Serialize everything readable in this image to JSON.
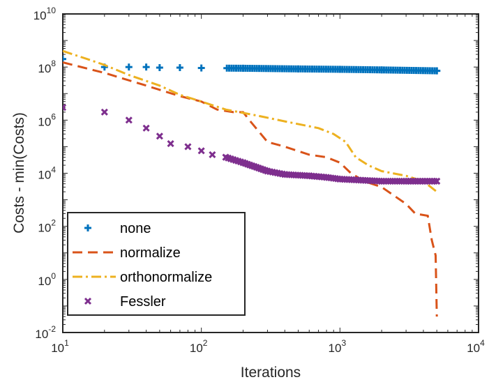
{
  "chart_data": {
    "type": "line",
    "title": "",
    "xlabel": "Iterations",
    "ylabel": "Costs - min(Costs)",
    "xscale": "log",
    "yscale": "log",
    "xlim": [
      10,
      10000
    ],
    "ylim": [
      0.01,
      10000000000
    ],
    "xticks": [
      {
        "value": 10,
        "base": "10",
        "exp": "1"
      },
      {
        "value": 100,
        "base": "10",
        "exp": "2"
      },
      {
        "value": 1000,
        "base": "10",
        "exp": "3"
      },
      {
        "value": 10000,
        "base": "10",
        "exp": "4"
      }
    ],
    "yticks": [
      {
        "value": 0.01,
        "base": "10",
        "exp": "-2"
      },
      {
        "value": 1,
        "base": "10",
        "exp": "0"
      },
      {
        "value": 100,
        "base": "10",
        "exp": "2"
      },
      {
        "value": 10000,
        "base": "10",
        "exp": "4"
      },
      {
        "value": 1000000,
        "base": "10",
        "exp": "6"
      },
      {
        "value": 100000000,
        "base": "10",
        "exp": "8"
      },
      {
        "value": 10000000000,
        "base": "10",
        "exp": "10"
      }
    ],
    "grid": false,
    "legend_position": "bottom-left",
    "series": [
      {
        "name": "none",
        "color": "#0072BD",
        "style": "markers",
        "marker": "plus",
        "points": [
          [
            10,
            200000000
          ],
          [
            20,
            100000000
          ],
          [
            30,
            100000000
          ],
          [
            40,
            100000000
          ],
          [
            50,
            95000000
          ],
          [
            70,
            95000000
          ],
          [
            100,
            92000000
          ],
          [
            200,
            90000000
          ],
          [
            500,
            85000000
          ],
          [
            1000,
            82000000
          ],
          [
            2000,
            78000000
          ],
          [
            5000,
            72000000
          ]
        ]
      },
      {
        "name": "normalize",
        "color": "#D95319",
        "style": "dashed",
        "marker": "none",
        "points": [
          [
            10,
            150000000
          ],
          [
            20,
            60000000
          ],
          [
            40,
            20000000
          ],
          [
            70,
            8000000
          ],
          [
            100,
            5000000
          ],
          [
            130,
            2500000
          ],
          [
            170,
            2000000
          ],
          [
            200,
            2000000
          ],
          [
            230,
            800000
          ],
          [
            300,
            150000
          ],
          [
            400,
            100000
          ],
          [
            600,
            50000
          ],
          [
            800,
            40000
          ],
          [
            1000,
            25000
          ],
          [
            1200,
            10000
          ],
          [
            1500,
            5000
          ],
          [
            2000,
            3000
          ],
          [
            3000,
            700
          ],
          [
            3500,
            300
          ],
          [
            4300,
            250
          ],
          [
            4600,
            30
          ],
          [
            4900,
            8
          ],
          [
            5000,
            0.04
          ]
        ]
      },
      {
        "name": "orthonormalize",
        "color": "#EDB120",
        "style": "dash-dot",
        "marker": "none",
        "points": [
          [
            10,
            400000000
          ],
          [
            15,
            200000000
          ],
          [
            20,
            120000000
          ],
          [
            30,
            50000000
          ],
          [
            50,
            20000000
          ],
          [
            70,
            9000000
          ],
          [
            100,
            5000000
          ],
          [
            150,
            2500000
          ],
          [
            250,
            1500000
          ],
          [
            400,
            900000
          ],
          [
            700,
            500000
          ],
          [
            900,
            300000
          ],
          [
            1100,
            150000
          ],
          [
            1300,
            40000
          ],
          [
            1600,
            20000
          ],
          [
            2000,
            12000
          ],
          [
            3000,
            8000
          ],
          [
            4000,
            5000
          ],
          [
            5000,
            2000
          ]
        ]
      },
      {
        "name": "Fessler",
        "color": "#7E2F8E",
        "style": "markers",
        "marker": "x",
        "points": [
          [
            10,
            3000000
          ],
          [
            20,
            2000000
          ],
          [
            30,
            1000000
          ],
          [
            40,
            500000
          ],
          [
            50,
            250000
          ],
          [
            60,
            130000
          ],
          [
            80,
            100000
          ],
          [
            100,
            70000
          ],
          [
            120,
            50000
          ],
          [
            150,
            40000
          ],
          [
            200,
            25000
          ],
          [
            300,
            12000
          ],
          [
            400,
            9000
          ],
          [
            600,
            8000
          ],
          [
            800,
            7000
          ],
          [
            1000,
            6000
          ],
          [
            2000,
            5000
          ],
          [
            3000,
            5000
          ],
          [
            5000,
            5000
          ]
        ]
      }
    ]
  }
}
